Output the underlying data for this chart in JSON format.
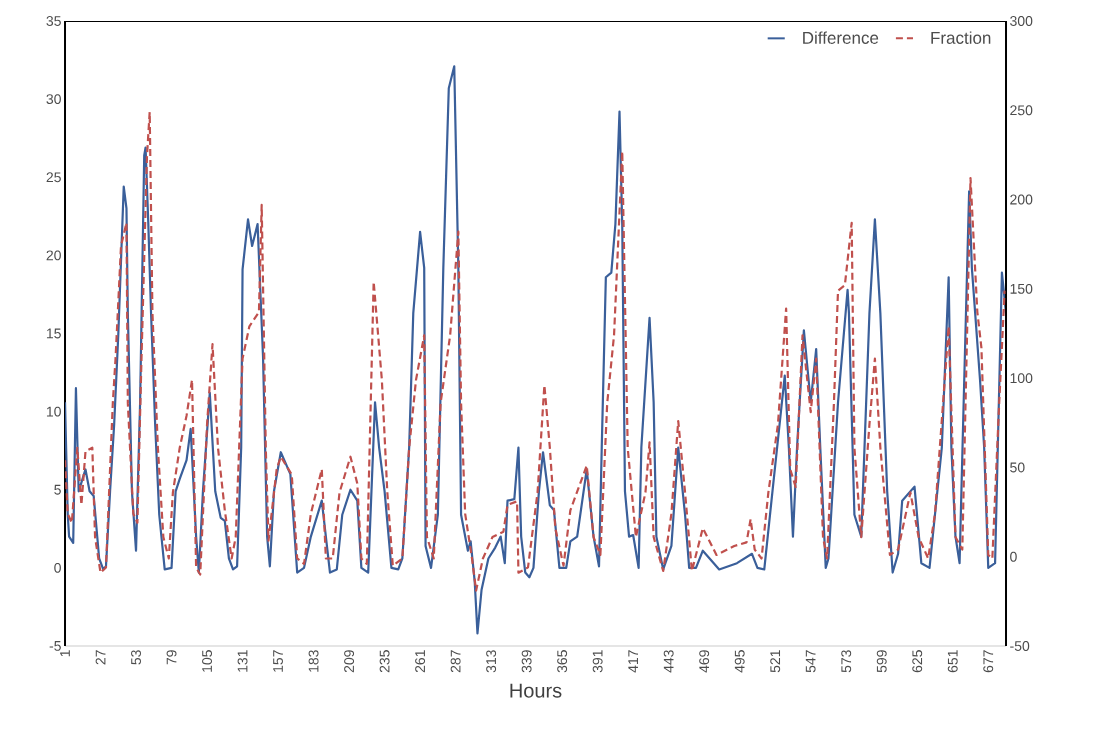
{
  "chart_data": {
    "type": "line",
    "xlabel": "Hours",
    "legend": "top right",
    "marker": "none",
    "xlim": [
      1,
      690
    ],
    "xticks": [
      1,
      27,
      53,
      79,
      105,
      131,
      157,
      183,
      209,
      235,
      261,
      287,
      313,
      339,
      365,
      391,
      417,
      443,
      469,
      495,
      521,
      547,
      573,
      599,
      625,
      651,
      677
    ],
    "ylim": [
      -5,
      35
    ],
    "yticks": [
      -5,
      0,
      5,
      10,
      15,
      20,
      25,
      30,
      35
    ],
    "y2lim": [
      -50,
      300
    ],
    "y2ticks": [
      -50,
      0,
      50,
      100,
      150,
      200,
      250,
      300
    ],
    "series": [
      {
        "name": "Difference",
        "color": "#3a5f9a",
        "line_style": "solid",
        "x": [
          1,
          3,
          4,
          7,
          9,
          11,
          16,
          19,
          22,
          26,
          29,
          31,
          34,
          37,
          40,
          44,
          46,
          47,
          50,
          53,
          56,
          59,
          60,
          62,
          64,
          67,
          70,
          74,
          79,
          82,
          85,
          90,
          93,
          97,
          99,
          102,
          107,
          111,
          115,
          118,
          121,
          124,
          127,
          130,
          131,
          135,
          138,
          142,
          146,
          149,
          151,
          154,
          159,
          166,
          171,
          176,
          181,
          189,
          195,
          200,
          204,
          210,
          215,
          218,
          223,
          228,
          231,
          235,
          240,
          245,
          248,
          253,
          256,
          261,
          264,
          265,
          269,
          274,
          278,
          282,
          286,
          289,
          291,
          296,
          298,
          301,
          303,
          306,
          311,
          316,
          320,
          323,
          325,
          330,
          333,
          335,
          338,
          341,
          344,
          348,
          351,
          356,
          359,
          363,
          368,
          371,
          376,
          383,
          388,
          392,
          394,
          397,
          401,
          404,
          407,
          409,
          411,
          414,
          417,
          421,
          423,
          429,
          432,
          434,
          439,
          445,
          450,
          455,
          458,
          463,
          468,
          480,
          493,
          504,
          508,
          513,
          519,
          528,
          531,
          534,
          537,
          542,
          547,
          551,
          554,
          558,
          560,
          567,
          574,
          575,
          579,
          584,
          590,
          594,
          598,
          603,
          607,
          611,
          614,
          623,
          628,
          634,
          643,
          648,
          650,
          653,
          656,
          659,
          663,
          665,
          671,
          674,
          677,
          682,
          687,
          690
        ],
        "values": [
          10.6,
          3.4,
          2.0,
          1.6,
          11.5,
          4.9,
          6.3,
          4.9,
          4.6,
          0.6,
          -0.1,
          0.1,
          4.9,
          9.2,
          14.9,
          24.4,
          23.0,
          16.3,
          4.9,
          1.1,
          10.6,
          26.4,
          26.9,
          22.0,
          16.3,
          9.2,
          3.4,
          -0.1,
          0.0,
          4.9,
          5.7,
          6.9,
          8.9,
          2.0,
          -0.3,
          4.9,
          11.2,
          4.9,
          3.2,
          3.0,
          0.6,
          -0.1,
          0.1,
          7.7,
          19.1,
          22.3,
          20.6,
          22.0,
          13.5,
          2.0,
          0.1,
          4.9,
          7.4,
          6.0,
          -0.3,
          0.0,
          2.0,
          4.3,
          -0.3,
          -0.1,
          3.4,
          5.0,
          4.3,
          0.0,
          -0.3,
          10.6,
          7.7,
          4.9,
          0.0,
          -0.1,
          0.6,
          7.7,
          16.3,
          21.5,
          19.2,
          1.4,
          0.0,
          3.4,
          19.2,
          30.7,
          32.1,
          19.2,
          3.4,
          1.1,
          1.7,
          -0.9,
          -4.2,
          -1.4,
          0.6,
          1.3,
          2.0,
          0.3,
          4.3,
          4.4,
          7.7,
          2.0,
          -0.3,
          -0.6,
          0.0,
          4.9,
          7.4,
          4.0,
          3.7,
          0.0,
          0.0,
          1.7,
          2.0,
          6.3,
          2.0,
          0.1,
          7.7,
          18.6,
          18.9,
          22.0,
          29.2,
          22.0,
          4.9,
          2.0,
          2.1,
          0.0,
          7.7,
          16.0,
          10.6,
          2.0,
          -0.1,
          1.4,
          7.7,
          3.4,
          0.0,
          0.0,
          1.1,
          -0.1,
          0.3,
          0.9,
          0.0,
          -0.1,
          4.9,
          12.3,
          7.7,
          2.0,
          7.7,
          15.2,
          10.6,
          14.0,
          7.7,
          0.0,
          0.6,
          10.6,
          17.8,
          16.3,
          3.4,
          2.0,
          16.3,
          22.3,
          16.3,
          4.9,
          -0.3,
          0.9,
          4.3,
          5.2,
          0.3,
          0.0,
          7.7,
          18.6,
          7.7,
          2.0,
          0.3,
          10.6,
          24.1,
          19.2,
          12.0,
          7.7,
          0.0,
          0.3,
          18.9,
          16.3
        ]
      },
      {
        "name": "Fraction",
        "color": "#c0504d",
        "line_style": "dashed",
        "axis": "y2",
        "x": [
          1,
          3,
          6,
          10,
          13,
          16,
          21,
          23,
          27,
          31,
          36,
          38,
          42,
          46,
          47,
          51,
          54,
          57,
          61,
          63,
          65,
          69,
          73,
          77,
          80,
          85,
          90,
          94,
          97,
          100,
          105,
          109,
          113,
          118,
          123,
          126,
          131,
          136,
          143,
          145,
          148,
          150,
          156,
          159,
          167,
          171,
          176,
          181,
          189,
          192,
          197,
          202,
          210,
          215,
          218,
          222,
          227,
          233,
          237,
          241,
          248,
          253,
          258,
          264,
          266,
          271,
          276,
          283,
          289,
          291,
          294,
          299,
          302,
          307,
          314,
          322,
          325,
          332,
          333,
          340,
          347,
          352,
          356,
          360,
          366,
          371,
          383,
          388,
          393,
          398,
          403,
          409,
          413,
          419,
          426,
          429,
          432,
          439,
          445,
          450,
          455,
          460,
          468,
          478,
          491,
          500,
          503,
          506,
          511,
          516,
          523,
          529,
          532,
          536,
          541,
          547,
          551,
          556,
          559,
          564,
          567,
          572,
          577,
          579,
          584,
          590,
          594,
          598,
          605,
          611,
          620,
          626,
          633,
          638,
          648,
          653,
          658,
          664,
          669,
          672,
          677,
          680,
          685,
          689
        ],
        "values": [
          54,
          24,
          19,
          61,
          29,
          59,
          61,
          11,
          -9,
          -6,
          86,
          111,
          174,
          187,
          86,
          24,
          19,
          111,
          224,
          249,
          137,
          61,
          11,
          -1,
          36,
          61,
          79,
          99,
          -6,
          -10,
          74,
          119,
          61,
          26,
          -1,
          11,
          111,
          129,
          137,
          197,
          61,
          9,
          49,
          56,
          46,
          -1,
          -4,
          24,
          49,
          -1,
          -1,
          36,
          56,
          41,
          -1,
          -4,
          154,
          99,
          36,
          -5,
          -1,
          61,
          99,
          124,
          11,
          -1,
          86,
          124,
          182,
          86,
          24,
          -1,
          -19,
          -1,
          11,
          14,
          29,
          31,
          -9,
          -6,
          36,
          96,
          61,
          16,
          -5,
          26,
          51,
          11,
          1,
          86,
          124,
          227,
          61,
          11,
          36,
          64,
          11,
          -8,
          24,
          76,
          36,
          -8,
          16,
          1,
          6,
          8,
          21,
          4,
          -1,
          36,
          74,
          139,
          49,
          39,
          124,
          81,
          111,
          11,
          -1,
          86,
          149,
          152,
          187,
          61,
          11,
          74,
          111,
          61,
          1,
          4,
          36,
          11,
          -1,
          24,
          129,
          11,
          4,
          212,
          137,
          117,
          1,
          -1,
          86,
          149
        ]
      }
    ]
  }
}
